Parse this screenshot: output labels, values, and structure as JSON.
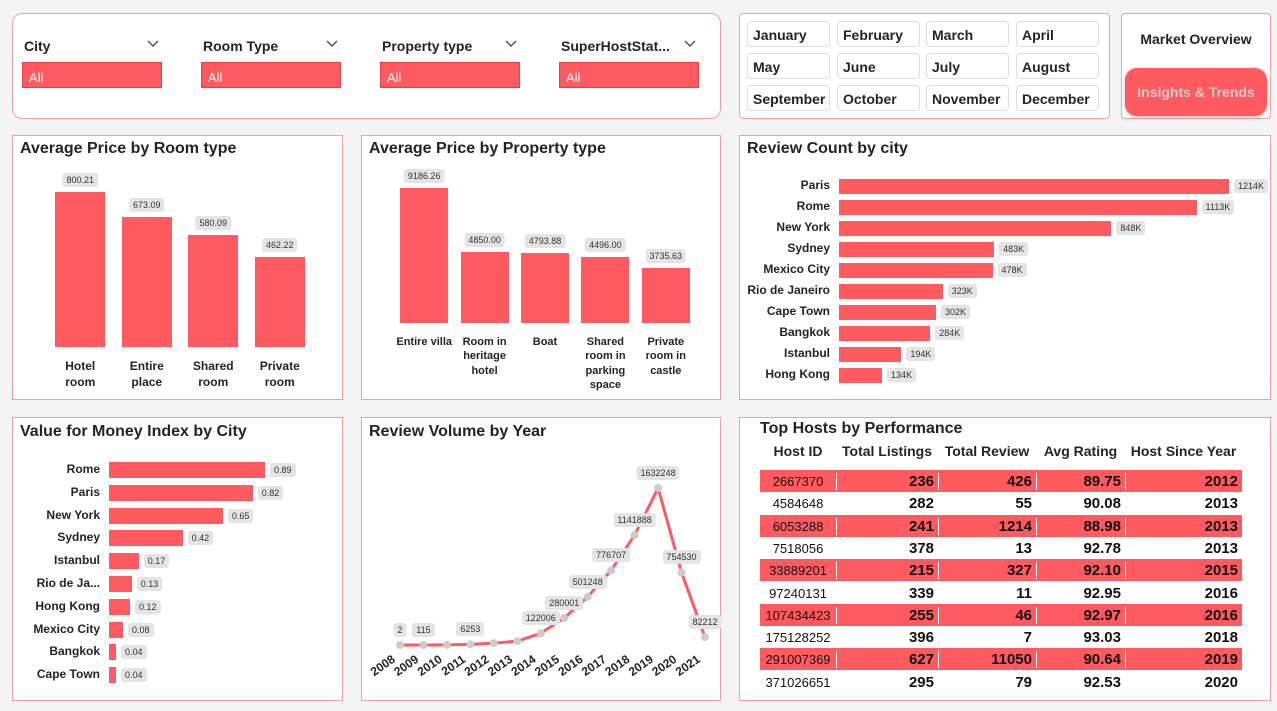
{
  "filters": [
    {
      "label": "City",
      "value": "All"
    },
    {
      "label": "Room Type",
      "value": "All"
    },
    {
      "label": "Property type",
      "value": "All"
    },
    {
      "label": "SuperHostStat...",
      "value": "All"
    }
  ],
  "months": [
    "January",
    "February",
    "March",
    "April",
    "May",
    "June",
    "July",
    "August",
    "September",
    "October",
    "November",
    "December"
  ],
  "nav": {
    "current": "Market Overview",
    "button": "Insights & Trends"
  },
  "chart_data": [
    {
      "type": "bar",
      "title": "Average Price by Room type",
      "categories": [
        "Hotel room",
        "Entire place",
        "Shared room",
        "Private room"
      ],
      "values": [
        800.21,
        673.09,
        580.09,
        462.22
      ],
      "color": "#ff5a5f"
    },
    {
      "type": "bar",
      "title": "Average Price by Property type",
      "categories": [
        "Entire villa",
        "Room in heritage hotel",
        "Boat",
        "Shared room in parking space",
        "Private room in castle"
      ],
      "values": [
        9186.26,
        4850.0,
        4793.88,
        4496.0,
        3735.63
      ],
      "value_labels": [
        "9186.26",
        "4850.00",
        "4793.88",
        "4496.00",
        "3735.63"
      ],
      "color": "#ff5a5f"
    },
    {
      "type": "hbar",
      "title": "Review Count by city",
      "categories": [
        "Paris",
        "Rome",
        "New York",
        "Sydney",
        "Mexico City",
        "Rio de Janeiro",
        "Cape Town",
        "Bangkok",
        "Istanbul",
        "Hong Kong"
      ],
      "values": [
        1214000,
        1113000,
        848000,
        483000,
        478000,
        323000,
        302000,
        284000,
        194000,
        134000
      ],
      "value_labels": [
        "1214K",
        "1113K",
        "848K",
        "483K",
        "478K",
        "323K",
        "302K",
        "284K",
        "194K",
        "134K"
      ],
      "color": "#ff5a5f"
    },
    {
      "type": "hbar",
      "title": "Value for Money Index by City",
      "categories": [
        "Rome",
        "Paris",
        "New York",
        "Sydney",
        "Istanbul",
        "Rio de Ja...",
        "Hong Kong",
        "Mexico City",
        "Bangkok",
        "Cape Town"
      ],
      "values": [
        0.89,
        0.82,
        0.65,
        0.42,
        0.17,
        0.13,
        0.12,
        0.08,
        0.04,
        0.04
      ],
      "color": "#ff5a5f"
    },
    {
      "type": "line",
      "title": "Review Volume by Year",
      "x": [
        2008,
        2009,
        2010,
        2011,
        2012,
        2013,
        2014,
        2015,
        2016,
        2017,
        2018,
        2019,
        2020,
        2021
      ],
      "values": [
        2,
        115,
        1000,
        6253,
        20000,
        40000,
        122006,
        280001,
        501248,
        776707,
        1141888,
        1632248,
        754530,
        82212
      ],
      "value_labels": [
        "2",
        "115",
        null,
        "6253",
        null,
        null,
        "122006",
        "280001",
        "501248",
        "776707",
        "1141888",
        "1632248",
        "754530",
        "82212"
      ],
      "color": "#ff5a5f",
      "marker_color": "#cccccc"
    }
  ],
  "table": {
    "title": "Top Hosts by Performance",
    "columns": [
      "Host ID",
      "Total Listings",
      "Total Review",
      "Avg Rating",
      "Host Since Year"
    ],
    "rows": [
      [
        "2667370",
        "236",
        "426",
        "89.75",
        "2012"
      ],
      [
        "4584648",
        "282",
        "55",
        "90.08",
        "2013"
      ],
      [
        "6053288",
        "241",
        "1214",
        "88.98",
        "2013"
      ],
      [
        "7518056",
        "378",
        "13",
        "92.78",
        "2013"
      ],
      [
        "33889201",
        "215",
        "327",
        "92.10",
        "2015"
      ],
      [
        "97240131",
        "339",
        "11",
        "92.95",
        "2016"
      ],
      [
        "107434423",
        "255",
        "46",
        "92.97",
        "2016"
      ],
      [
        "175128252",
        "396",
        "7",
        "93.03",
        "2018"
      ],
      [
        "291007369",
        "627",
        "11050",
        "90.64",
        "2019"
      ],
      [
        "371026651",
        "295",
        "79",
        "92.53",
        "2020"
      ]
    ]
  }
}
